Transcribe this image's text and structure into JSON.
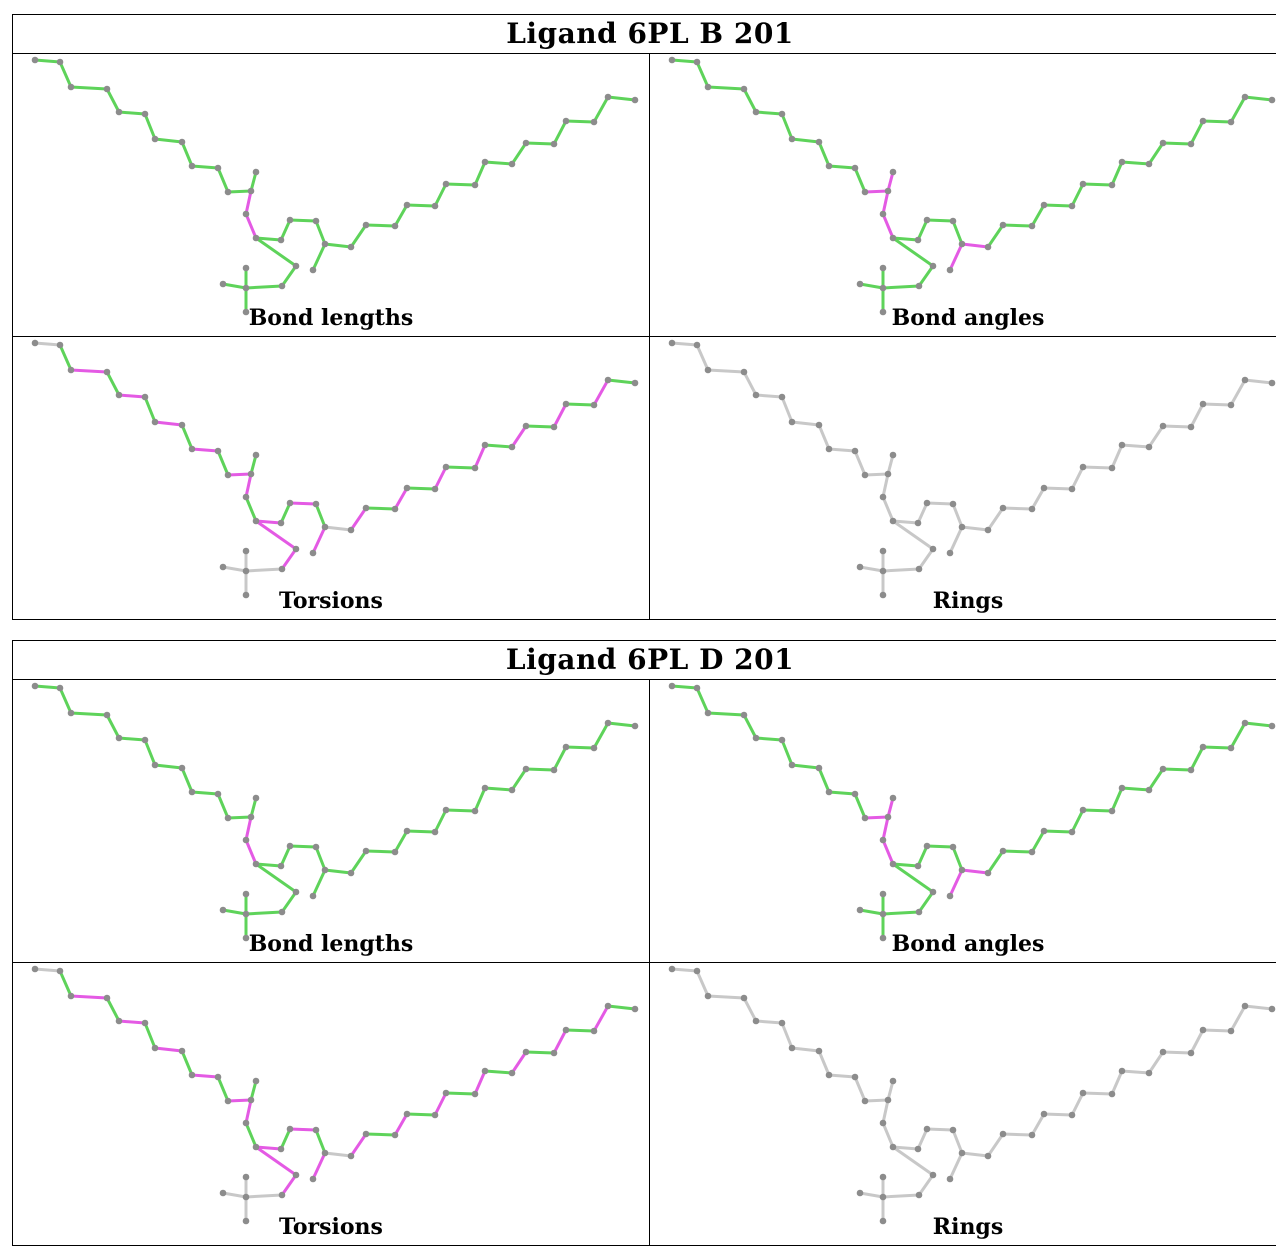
{
  "panels": [
    {
      "title": "Ligand 6PL B 201",
      "cells": [
        {
          "caption": "Bond lengths",
          "mode": "lengths"
        },
        {
          "caption": "Bond angles",
          "mode": "angles"
        },
        {
          "caption": "Torsions",
          "mode": "torsions"
        },
        {
          "caption": "Rings",
          "mode": "rings"
        }
      ]
    },
    {
      "title": "Ligand 6PL D 201",
      "cells": [
        {
          "caption": "Bond lengths",
          "mode": "lengths"
        },
        {
          "caption": "Bond angles",
          "mode": "angles"
        },
        {
          "caption": "Torsions",
          "mode": "torsions"
        },
        {
          "caption": "Rings",
          "mode": "rings"
        }
      ]
    }
  ],
  "colors": {
    "ok": "#5ed35a",
    "outlier": "#e45ae4",
    "none": "#c8c8c8",
    "atom": "#8c8c8c"
  }
}
